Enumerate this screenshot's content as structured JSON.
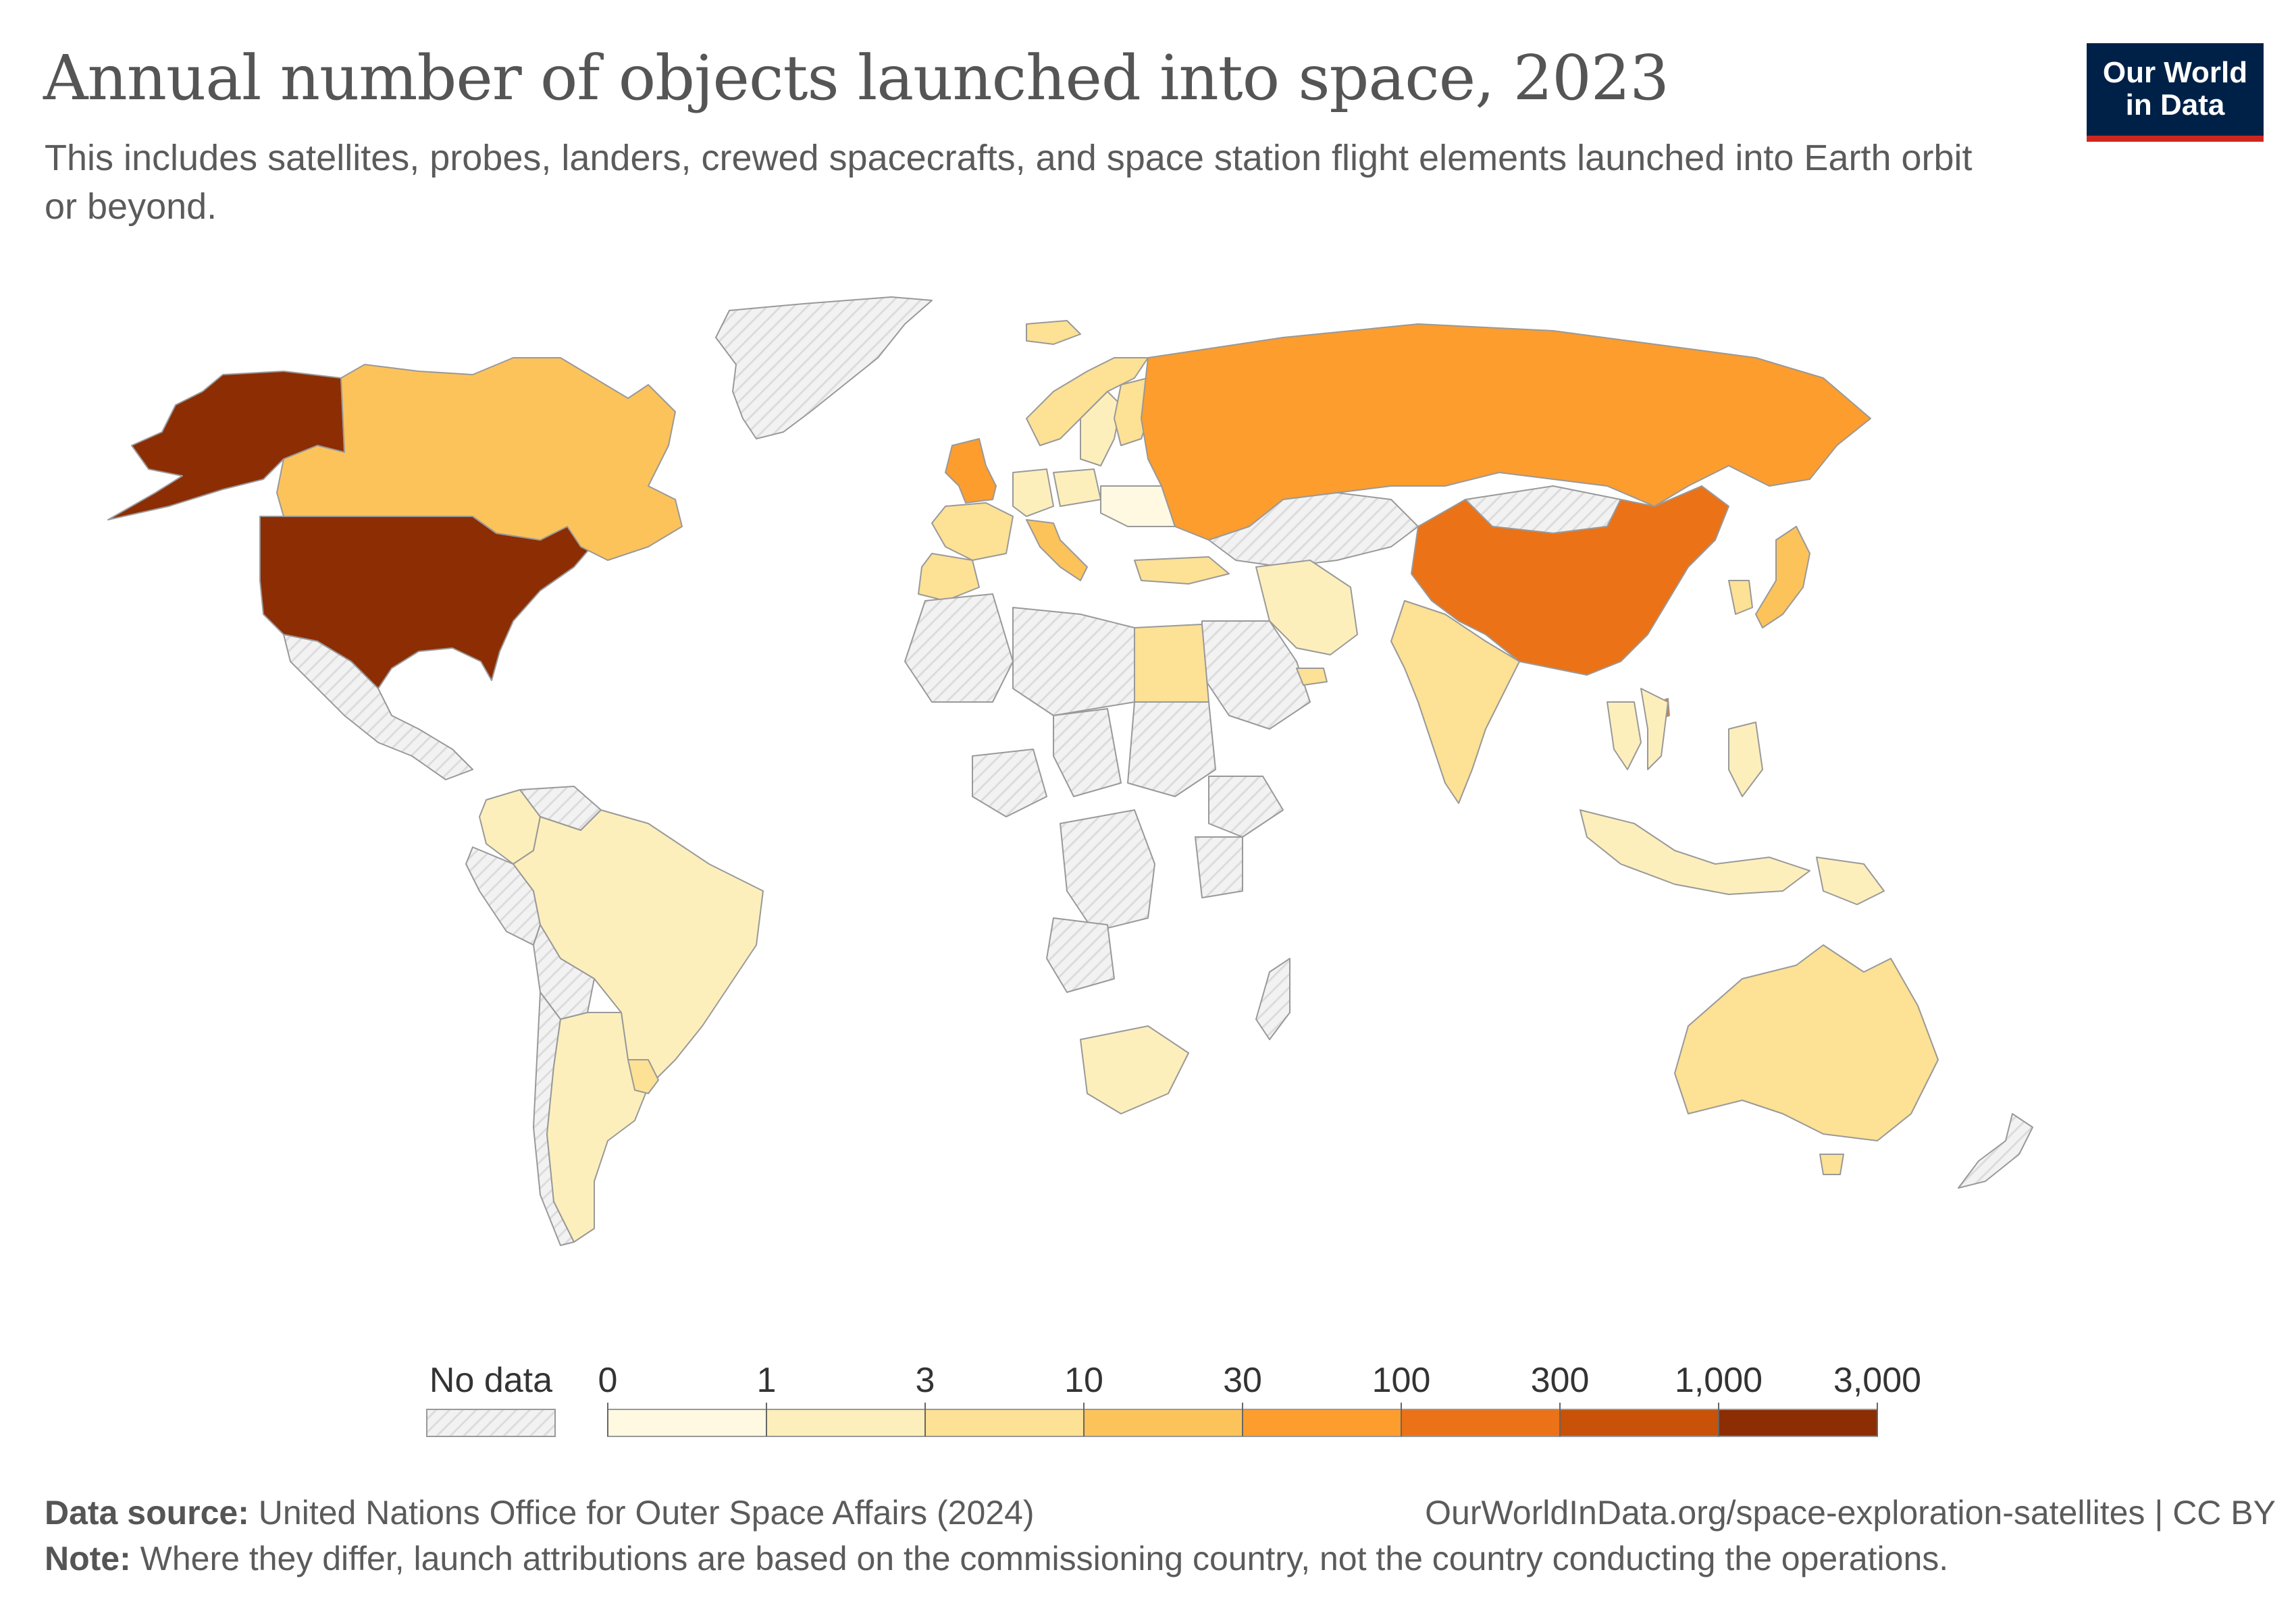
{
  "header": {
    "title": "Annual number of objects launched into space, 2023",
    "subtitle": "This includes satellites, probes, landers, crewed spacecrafts, and space station flight elements launched into Earth orbit or beyond.",
    "logo_line1": "Our World",
    "logo_line2": "in Data"
  },
  "colors": {
    "no_data": "#eeeeee",
    "border": "#999999",
    "bins": [
      "#fef9e0",
      "#fdefbc",
      "#fde194",
      "#fdc35b",
      "#fc9d2e",
      "#eb7217",
      "#c85207",
      "#8c2d04"
    ]
  },
  "legend": {
    "no_data_label": "No data",
    "ticks": [
      "0",
      "1",
      "3",
      "10",
      "30",
      "100",
      "300",
      "1,000",
      "3,000"
    ]
  },
  "map_data": {
    "year": 2023,
    "metric": "objects launched into space",
    "regions": [
      {
        "name": "United States",
        "value": 2166
      },
      {
        "name": "Alaska (United States)",
        "value": 2166
      },
      {
        "name": "Canada",
        "value": 22
      },
      {
        "name": "Greenland",
        "value": null
      },
      {
        "name": "Mexico",
        "value": null
      },
      {
        "name": "Colombia",
        "value": 1
      },
      {
        "name": "Brazil",
        "value": 2
      },
      {
        "name": "Argentina",
        "value": 1
      },
      {
        "name": "Uruguay",
        "value": 5
      },
      {
        "name": "Peru",
        "value": null
      },
      {
        "name": "Bolivia",
        "value": null
      },
      {
        "name": "Chile",
        "value": null
      },
      {
        "name": "Venezuela",
        "value": null
      },
      {
        "name": "United Kingdom",
        "value": 80
      },
      {
        "name": "Iceland",
        "value": 4
      },
      {
        "name": "Norway",
        "value": 3
      },
      {
        "name": "Sweden",
        "value": 2
      },
      {
        "name": "Finland",
        "value": 5
      },
      {
        "name": "France",
        "value": 6
      },
      {
        "name": "Spain",
        "value": 5
      },
      {
        "name": "Italy",
        "value": 15
      },
      {
        "name": "Germany",
        "value": 2
      },
      {
        "name": "Poland",
        "value": 1
      },
      {
        "name": "Ukraine",
        "value": 0
      },
      {
        "name": "Turkey",
        "value": 4
      },
      {
        "name": "Russia",
        "value": 40
      },
      {
        "name": "Kazakhstan",
        "value": null
      },
      {
        "name": "Mongolia",
        "value": null
      },
      {
        "name": "China",
        "value": 200
      },
      {
        "name": "Taiwan",
        "value": 150
      },
      {
        "name": "South Korea",
        "value": 8
      },
      {
        "name": "Japan",
        "value": 20
      },
      {
        "name": "India",
        "value": 8
      },
      {
        "name": "Iran",
        "value": 1
      },
      {
        "name": "Saudi Arabia",
        "value": null
      },
      {
        "name": "United Arab Emirates",
        "value": 5
      },
      {
        "name": "Thailand",
        "value": 1
      },
      {
        "name": "Vietnam",
        "value": 2
      },
      {
        "name": "Philippines",
        "value": 2
      },
      {
        "name": "Indonesia",
        "value": 1
      },
      {
        "name": "Papua New Guinea",
        "value": 1
      },
      {
        "name": "Egypt",
        "value": 3
      },
      {
        "name": "South Africa",
        "value": 1
      },
      {
        "name": "Algeria",
        "value": null
      },
      {
        "name": "Libya",
        "value": null
      },
      {
        "name": "Chad",
        "value": null
      },
      {
        "name": "Sudan",
        "value": null
      },
      {
        "name": "Nigeria",
        "value": null
      },
      {
        "name": "DR Congo",
        "value": null
      },
      {
        "name": "Angola",
        "value": null
      },
      {
        "name": "Ethiopia",
        "value": null
      },
      {
        "name": "Kenya",
        "value": null
      },
      {
        "name": "Madagascar",
        "value": null
      },
      {
        "name": "Australia",
        "value": 6
      },
      {
        "name": "New Zealand",
        "value": null
      },
      {
        "name": "Tasmania (Australia)",
        "value": 6
      }
    ]
  },
  "footer": {
    "source_label": "Data source:",
    "source_text": "United Nations Office for Outer Space Affairs (2024)",
    "url": "OurWorldInData.org/space-exploration-satellites",
    "license": "| CC BY",
    "note_label": "Note:",
    "note_text": "Where they differ, launch attributions are based on the commissioning country, not the country conducting the operations."
  }
}
